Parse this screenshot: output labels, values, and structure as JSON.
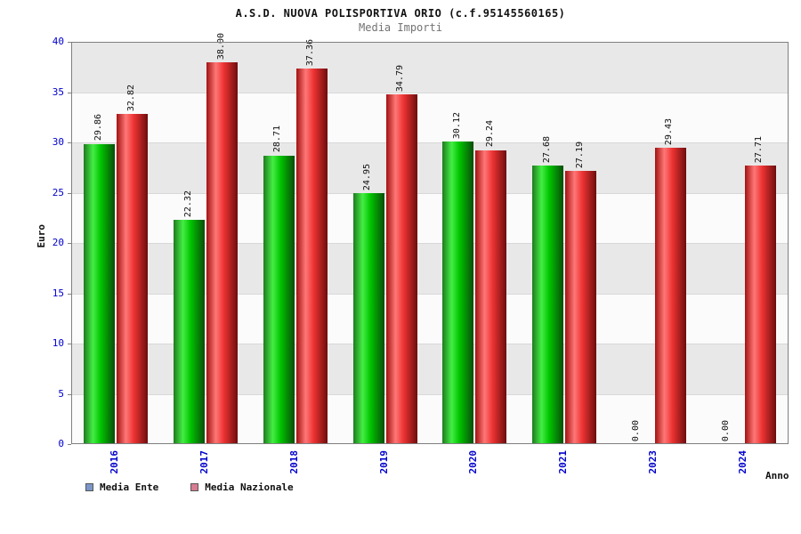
{
  "title": "A.S.D. NUOVA POLISPORTIVA ORIO (c.f.95145560165)",
  "subtitle": "Media Importi",
  "axes": {
    "ylabel": "Euro",
    "xlabel": "Anno"
  },
  "legend": [
    {
      "label": "Media Ente",
      "swatch": "#7b96c8"
    },
    {
      "label": "Media Nazionale",
      "swatch": "#d77c92"
    }
  ],
  "colors": {
    "band_dark": "#e8e8e8",
    "band_light": "#fbfbfb",
    "tick_label": "#0000cc",
    "plot_border": "#7f7f7f"
  },
  "chart_data": {
    "type": "bar",
    "title": "A.S.D. NUOVA POLISPORTIVA ORIO (c.f.95145560165)",
    "subtitle": "Media Importi",
    "xlabel": "Anno",
    "ylabel": "Euro",
    "ylim": [
      0,
      40
    ],
    "ytick_step": 5,
    "yticks": [
      0,
      5,
      10,
      15,
      20,
      25,
      30,
      35,
      40
    ],
    "grid": "horizontal-bands",
    "legend_position": "bottom-left",
    "value_labels": "vertical",
    "categories": [
      "2016",
      "2017",
      "2018",
      "2019",
      "2020",
      "2021",
      "2023",
      "2024"
    ],
    "series": [
      {
        "name": "Media Ente",
        "values": [
          29.86,
          22.32,
          28.71,
          24.95,
          30.12,
          27.68,
          0,
          0
        ],
        "labels": [
          "29.86",
          "22.32",
          "28.71",
          "24.95",
          "30.12",
          "27.68",
          "0.00",
          "0.00"
        ],
        "gradient": [
          "#1f7a1f",
          "#44ee44",
          "#00c400",
          "#0a4d0a"
        ]
      },
      {
        "name": "Media Nazionale",
        "values": [
          32.82,
          38.0,
          37.36,
          34.79,
          29.24,
          27.19,
          29.43,
          27.71
        ],
        "labels": [
          "32.82",
          "38.00",
          "37.36",
          "34.79",
          "29.24",
          "27.19",
          "29.43",
          "27.71"
        ],
        "gradient": [
          "#a31212",
          "#ff7777",
          "#ee3333",
          "#6e0d0d"
        ]
      }
    ]
  }
}
